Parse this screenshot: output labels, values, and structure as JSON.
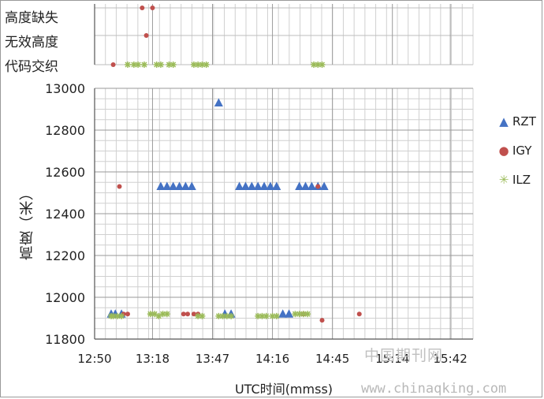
{
  "chart_data": {
    "type": "scatter",
    "xlabel": "UTC时间(mmss)",
    "ylabel": "高度（米）",
    "x_ticks": [
      "12:50",
      "13:18",
      "13:47",
      "14:16",
      "14:45",
      "15:14",
      "15:42"
    ],
    "x_tick_seconds": [
      46200,
      47880,
      49620,
      51360,
      53100,
      54840,
      56520
    ],
    "xlim_seconds": [
      46200,
      57180
    ],
    "ylim": [
      11800,
      13000
    ],
    "y_ticks": [
      11800,
      12000,
      12200,
      12400,
      12600,
      12800,
      13000
    ],
    "grid": true,
    "legend_position": "right",
    "status_rows": [
      "高度缺失",
      "无效高度",
      "代码交织"
    ],
    "series": [
      {
        "name": "RZT",
        "marker": "triangle",
        "color": "#4472c4",
        "points": [
          [
            "12:58",
            11920
          ],
          [
            "13:00",
            11920
          ],
          [
            "13:03",
            11920
          ],
          [
            "13:22",
            12530
          ],
          [
            "13:25",
            12530
          ],
          [
            "13:28",
            12530
          ],
          [
            "13:31",
            12530
          ],
          [
            "13:34",
            12530
          ],
          [
            "13:37",
            12530
          ],
          [
            "13:50",
            12930
          ],
          [
            "13:53",
            11920
          ],
          [
            "13:56",
            11920
          ],
          [
            "14:00",
            12530
          ],
          [
            "14:03",
            12530
          ],
          [
            "14:06",
            12530
          ],
          [
            "14:09",
            12530
          ],
          [
            "14:12",
            12530
          ],
          [
            "14:15",
            12530
          ],
          [
            "14:18",
            12530
          ],
          [
            "14:21",
            11920
          ],
          [
            "14:24",
            11920
          ],
          [
            "14:29",
            12530
          ],
          [
            "14:32",
            12530
          ],
          [
            "14:35",
            12530
          ],
          [
            "14:38",
            12530
          ],
          [
            "14:41",
            12530
          ]
        ]
      },
      {
        "name": "IGY",
        "marker": "circle",
        "color": "#c0504d",
        "points": [
          [
            "13:02",
            12530
          ],
          [
            "13:04",
            11920
          ],
          [
            "13:06",
            11920
          ],
          [
            "13:33",
            11920
          ],
          [
            "13:35",
            11920
          ],
          [
            "13:38",
            11920
          ],
          [
            "13:40",
            11920
          ],
          [
            "14:31",
            11920
          ],
          [
            "14:38",
            12530
          ],
          [
            "14:40",
            11890
          ],
          [
            "14:58",
            11920
          ]
        ],
        "status_points": [
          [
            "12:59",
            "代码交织"
          ],
          [
            "13:13",
            "高度缺失"
          ],
          [
            "13:15",
            "无效高度"
          ],
          [
            "13:18",
            "高度缺失"
          ]
        ]
      },
      {
        "name": "ILZ",
        "marker": "star",
        "color": "#9bbb59",
        "points": [
          [
            "12:58",
            11910
          ],
          [
            "12:59",
            11910
          ],
          [
            "13:01",
            11910
          ],
          [
            "13:03",
            11910
          ],
          [
            "13:17",
            11920
          ],
          [
            "13:19",
            11920
          ],
          [
            "13:21",
            11910
          ],
          [
            "13:23",
            11920
          ],
          [
            "13:25",
            11920
          ],
          [
            "13:40",
            11910
          ],
          [
            "13:42",
            11910
          ],
          [
            "13:50",
            11910
          ],
          [
            "13:52",
            11910
          ],
          [
            "13:54",
            11910
          ],
          [
            "13:56",
            11910
          ],
          [
            "14:09",
            11910
          ],
          [
            "14:11",
            11910
          ],
          [
            "14:13",
            11910
          ],
          [
            "14:16",
            11910
          ],
          [
            "14:18",
            11910
          ],
          [
            "14:27",
            11920
          ],
          [
            "14:29",
            11920
          ],
          [
            "14:31",
            11920
          ],
          [
            "14:33",
            11920
          ]
        ],
        "status_points": [
          [
            "13:06",
            "代码交织"
          ],
          [
            "13:09",
            "代码交织"
          ],
          [
            "13:11",
            "代码交织"
          ],
          [
            "13:14",
            "代码交织"
          ],
          [
            "13:20",
            "代码交织"
          ],
          [
            "13:22",
            "代码交织"
          ],
          [
            "13:26",
            "代码交织"
          ],
          [
            "13:28",
            "代码交织"
          ],
          [
            "13:38",
            "代码交织"
          ],
          [
            "13:40",
            "代码交织"
          ],
          [
            "13:42",
            "代码交织"
          ],
          [
            "13:44",
            "代码交织"
          ],
          [
            "14:36",
            "代码交织"
          ],
          [
            "14:38",
            "代码交织"
          ],
          [
            "14:40",
            "代码交织"
          ]
        ]
      }
    ]
  },
  "watermark": {
    "cn": "中国期刊网",
    "url": "www.chinaqking.com"
  }
}
